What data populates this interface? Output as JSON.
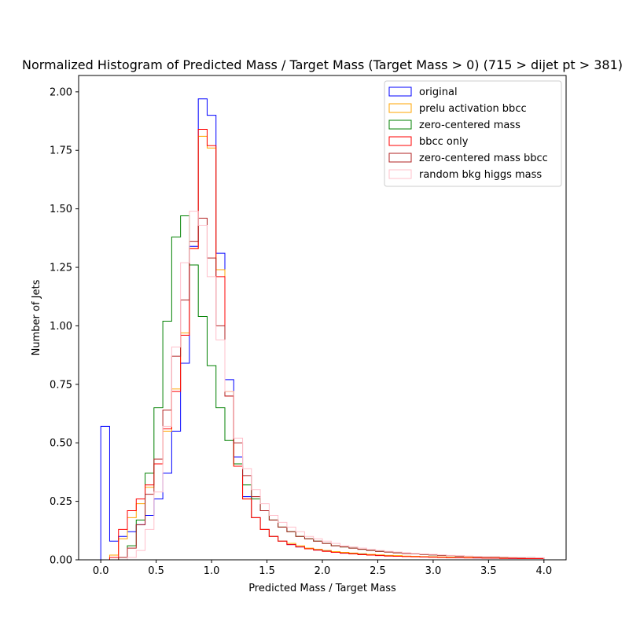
{
  "chart_data": {
    "type": "histogram-step",
    "title": "Normalized Histogram of Predicted Mass / Target Mass (Target Mass > 0) (715 > dijet pt > 381)",
    "xlabel": "Predicted Mass / Target Mass",
    "ylabel": "Number of Jets",
    "xlim": [
      -0.2,
      4.2
    ],
    "ylim": [
      0,
      2.07
    ],
    "xticks": [
      "0.0",
      "0.5",
      "1.0",
      "1.5",
      "2.0",
      "2.5",
      "3.0",
      "3.5",
      "4.0"
    ],
    "yticks": [
      "0.00",
      "0.25",
      "0.50",
      "0.75",
      "1.00",
      "1.25",
      "1.50",
      "1.75",
      "2.00"
    ],
    "legend_position": "top-right",
    "bin_width": 0.08,
    "bin_range": [
      0,
      4
    ],
    "series": [
      {
        "name": "original",
        "color": "#0000ff",
        "values": [
          0.57,
          0.08,
          0.1,
          0.12,
          0.15,
          0.19,
          0.26,
          0.37,
          0.55,
          0.84,
          1.34,
          1.97,
          1.9,
          1.31,
          0.77,
          0.44,
          0.27,
          0.18,
          0.13,
          0.1,
          0.08,
          0.065,
          0.055,
          0.048,
          0.042,
          0.037,
          0.033,
          0.03,
          0.027,
          0.024,
          0.021,
          0.019,
          0.018,
          0.016,
          0.015,
          0.014,
          0.013,
          0.012,
          0.011,
          0.01,
          0.009,
          0.009,
          0.008,
          0.008,
          0.007,
          0.007,
          0.006,
          0.006,
          0.005,
          0.005
        ]
      },
      {
        "name": "prelu activation bbcc",
        "color": "#ffa500",
        "values": [
          0.0,
          0.02,
          0.09,
          0.18,
          0.24,
          0.31,
          0.41,
          0.55,
          0.73,
          0.97,
          1.33,
          1.81,
          1.76,
          1.24,
          0.72,
          0.4,
          0.26,
          0.18,
          0.13,
          0.1,
          0.08,
          0.07,
          0.06,
          0.05,
          0.045,
          0.04,
          0.035,
          0.032,
          0.029,
          0.026,
          0.023,
          0.021,
          0.019,
          0.018,
          0.016,
          0.015,
          0.014,
          0.013,
          0.012,
          0.011,
          0.01,
          0.01,
          0.009,
          0.008,
          0.008,
          0.007,
          0.007,
          0.006,
          0.006,
          0.005
        ]
      },
      {
        "name": "zero-centered mass",
        "color": "#008000",
        "values": [
          0.0,
          0.0,
          0.01,
          0.06,
          0.17,
          0.37,
          0.65,
          1.02,
          1.38,
          1.47,
          1.26,
          1.04,
          0.83,
          0.65,
          0.51,
          0.41,
          0.32,
          0.26,
          0.21,
          0.17,
          0.14,
          0.12,
          0.1,
          0.09,
          0.08,
          0.07,
          0.06,
          0.055,
          0.05,
          0.045,
          0.04,
          0.036,
          0.033,
          0.03,
          0.027,
          0.025,
          0.023,
          0.021,
          0.019,
          0.018,
          0.016,
          0.015,
          0.014,
          0.013,
          0.012,
          0.011,
          0.01,
          0.009,
          0.009,
          0.008
        ]
      },
      {
        "name": "bbcc only",
        "color": "#ff0000",
        "values": [
          0.0,
          0.01,
          0.13,
          0.21,
          0.26,
          0.32,
          0.41,
          0.56,
          0.72,
          0.96,
          1.33,
          1.84,
          1.77,
          1.21,
          0.7,
          0.4,
          0.26,
          0.18,
          0.13,
          0.1,
          0.08,
          0.065,
          0.055,
          0.047,
          0.041,
          0.036,
          0.032,
          0.028,
          0.025,
          0.022,
          0.02,
          0.018,
          0.016,
          0.015,
          0.014,
          0.013,
          0.012,
          0.011,
          0.01,
          0.009,
          0.009,
          0.008,
          0.008,
          0.007,
          0.007,
          0.006,
          0.006,
          0.005,
          0.005,
          0.005
        ]
      },
      {
        "name": "zero-centered mass bbcc",
        "color": "#b22222",
        "values": [
          0.0,
          0.0,
          0.01,
          0.05,
          0.15,
          0.28,
          0.43,
          0.64,
          0.87,
          1.11,
          1.36,
          1.46,
          1.29,
          1.0,
          0.7,
          0.5,
          0.36,
          0.27,
          0.21,
          0.17,
          0.14,
          0.12,
          0.1,
          0.09,
          0.08,
          0.07,
          0.06,
          0.055,
          0.05,
          0.045,
          0.04,
          0.036,
          0.033,
          0.03,
          0.027,
          0.025,
          0.023,
          0.021,
          0.019,
          0.018,
          0.016,
          0.015,
          0.014,
          0.013,
          0.012,
          0.011,
          0.01,
          0.009,
          0.009,
          0.008
        ]
      },
      {
        "name": "random bkg higgs mass",
        "color": "#ffc0cb",
        "values": [
          0.0,
          0.0,
          0.0,
          0.01,
          0.04,
          0.13,
          0.29,
          0.57,
          0.91,
          1.27,
          1.49,
          1.43,
          1.21,
          0.94,
          0.72,
          0.52,
          0.39,
          0.3,
          0.24,
          0.19,
          0.16,
          0.14,
          0.12,
          0.1,
          0.09,
          0.08,
          0.07,
          0.06,
          0.055,
          0.05,
          0.045,
          0.04,
          0.036,
          0.033,
          0.03,
          0.027,
          0.025,
          0.023,
          0.021,
          0.019,
          0.018,
          0.016,
          0.015,
          0.014,
          0.013,
          0.012,
          0.011,
          0.01,
          0.009,
          0.009
        ]
      }
    ]
  }
}
